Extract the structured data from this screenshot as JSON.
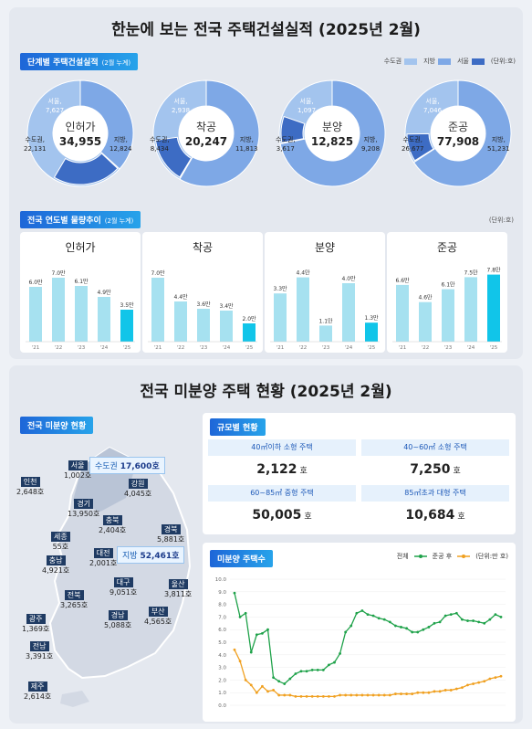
{
  "section1": {
    "title": "한눈에 보는 전국 주택건설실적 (2025년 2월)",
    "stage_tag": "단계별 주택건설실적",
    "stage_tag_note": "(2월 누계)",
    "legend": [
      "수도권",
      "지방",
      "서울"
    ],
    "unit": "(단위:호)",
    "colors": {
      "capital": "#a3c4ee",
      "local": "#7ea8e6",
      "seoul": "#3d6cc4"
    },
    "donuts": [
      {
        "name": "인허가",
        "total": "34,955",
        "seoul_label": "서울,",
        "seoul_value": "7,627",
        "capital_label": "수도권,",
        "capital_value": "22,131",
        "local_label": "지방,",
        "local_value": "12,824",
        "seoul": 7627,
        "capital": 22131,
        "local": 12824
      },
      {
        "name": "착공",
        "total": "20,247",
        "seoul_label": "서울,",
        "seoul_value": "2,938",
        "capital_label": "수도권,",
        "capital_value": "8,434",
        "local_label": "지방,",
        "local_value": "11,813",
        "seoul": 2938,
        "capital": 8434,
        "local": 11813
      },
      {
        "name": "분양",
        "total": "12,825",
        "seoul_label": "서울,",
        "seoul_value": "1,097",
        "capital_label": "수도권,",
        "capital_value": "3,617",
        "local_label": "지방,",
        "local_value": "9,208",
        "seoul": 1097,
        "capital": 3617,
        "local": 9208
      },
      {
        "name": "준공",
        "total": "77,908",
        "seoul_label": "서울,",
        "seoul_value": "7,046",
        "capital_label": "수도권,",
        "capital_value": "26,677",
        "local_label": "지방,",
        "local_value": "51,231",
        "seoul": 7046,
        "capital": 26677,
        "local": 51231
      }
    ],
    "trend_tag": "전국 연도별 물량추이",
    "trend_tag_note": "(2월 누계)",
    "trend_unit": "(단위:호)"
  },
  "section2": {
    "title": "전국 미분양 주택 현황 (2025년 2월)",
    "map_tag": "전국 미분양 현황",
    "capital_box_label": "수도권",
    "capital_box_value": "17,600호",
    "local_box_label": "지방",
    "local_box_value": "52,461호",
    "regions": [
      {
        "name": "서울",
        "value": "1,002호"
      },
      {
        "name": "인천",
        "value": "2,648호"
      },
      {
        "name": "경기",
        "value": "13,950호"
      },
      {
        "name": "강원",
        "value": "4,045호"
      },
      {
        "name": "충북",
        "value": "2,404호"
      },
      {
        "name": "경북",
        "value": "5,881호"
      },
      {
        "name": "세종",
        "value": "55호"
      },
      {
        "name": "대전",
        "value": "2,001호"
      },
      {
        "name": "충남",
        "value": "4,921호"
      },
      {
        "name": "대구",
        "value": "9,051호"
      },
      {
        "name": "울산",
        "value": "3,811호"
      },
      {
        "name": "전북",
        "value": "3,265호"
      },
      {
        "name": "경남",
        "value": "5,088호"
      },
      {
        "name": "부산",
        "value": "4,565호"
      },
      {
        "name": "광주",
        "value": "1,369호"
      },
      {
        "name": "전남",
        "value": "3,391호"
      },
      {
        "name": "제주",
        "value": "2,614호"
      }
    ],
    "size_tag": "규모별 현황",
    "sizes": [
      {
        "label": "40㎡이하 소형 주택",
        "value": "2,122",
        "unit": "호"
      },
      {
        "label": "40~60㎡ 소형 주택",
        "value": "7,250",
        "unit": "호"
      },
      {
        "label": "60~85㎡ 중형 주택",
        "value": "50,005",
        "unit": "호"
      },
      {
        "label": "85㎡초과 대형 주택",
        "value": "10,684",
        "unit": "호"
      }
    ],
    "line_tag": "미분양 주택수",
    "line_legend_total": "전체",
    "line_legend_done": "준공 후",
    "line_unit": "(단위:만 호)"
  },
  "chart_data": [
    {
      "type": "bar",
      "title": "인허가",
      "categories": [
        "'21",
        "'22",
        "'23",
        "'24",
        "'25"
      ],
      "values": [
        6.0,
        7.0,
        6.1,
        4.9,
        3.5
      ],
      "value_labels": [
        "6.0만",
        "7.0만",
        "6.1만",
        "4.9만",
        "3.5만"
      ],
      "ylim": [
        0,
        8
      ]
    },
    {
      "type": "bar",
      "title": "착공",
      "categories": [
        "'21",
        "'22",
        "'23",
        "'24",
        "'25"
      ],
      "values": [
        7.0,
        4.4,
        3.6,
        3.4,
        2.0
      ],
      "value_labels": [
        "7.0만",
        "4.4만",
        "3.6만",
        "3.4만",
        "2.0만"
      ],
      "ylim": [
        0,
        8
      ]
    },
    {
      "type": "bar",
      "title": "분양",
      "categories": [
        "'21",
        "'22",
        "'23",
        "'24",
        "'25"
      ],
      "values": [
        3.3,
        4.4,
        1.1,
        4.0,
        1.3
      ],
      "value_labels": [
        "3.3만",
        "4.4만",
        "1.1만",
        "4.0만",
        "1.3만"
      ],
      "ylim": [
        0,
        5
      ]
    },
    {
      "type": "bar",
      "title": "준공",
      "categories": [
        "'21",
        "'22",
        "'23",
        "'24",
        "'25"
      ],
      "values": [
        6.6,
        4.6,
        6.1,
        7.5,
        7.8
      ],
      "value_labels": [
        "6.6만",
        "4.6만",
        "6.1만",
        "7.5만",
        "7.8만"
      ],
      "ylim": [
        0,
        8.5
      ]
    },
    {
      "type": "line",
      "ylim": [
        0,
        10
      ],
      "yticks": [
        "0.0",
        "1.0",
        "2.0",
        "3.0",
        "4.0",
        "5.0",
        "6.0",
        "7.0",
        "8.0",
        "9.0",
        "10.0"
      ],
      "series": [
        {
          "name": "전체",
          "color": "#1fa24a",
          "values": [
            8.9,
            7.0,
            7.3,
            4.2,
            5.6,
            5.7,
            6.0,
            2.2,
            1.9,
            1.7,
            2.1,
            2.5,
            2.7,
            2.7,
            2.8,
            2.8,
            2.8,
            3.2,
            3.4,
            4.1,
            5.8,
            6.3,
            7.3,
            7.5,
            7.2,
            7.1,
            6.9,
            6.8,
            6.6,
            6.3,
            6.2,
            6.1,
            5.8,
            5.8,
            6.0,
            6.2,
            6.5,
            6.6,
            7.1,
            7.2,
            7.3,
            6.8,
            6.7,
            6.7,
            6.6,
            6.5,
            6.8,
            7.2,
            7.0
          ]
        },
        {
          "name": "준공 후",
          "color": "#f0a020",
          "values": [
            4.4,
            3.5,
            2.0,
            1.6,
            1.0,
            1.5,
            1.1,
            1.2,
            0.8,
            0.8,
            0.8,
            0.7,
            0.7,
            0.7,
            0.7,
            0.7,
            0.7,
            0.7,
            0.7,
            0.8,
            0.8,
            0.8,
            0.8,
            0.8,
            0.8,
            0.8,
            0.8,
            0.8,
            0.8,
            0.9,
            0.9,
            0.9,
            0.9,
            1.0,
            1.0,
            1.0,
            1.1,
            1.1,
            1.2,
            1.2,
            1.3,
            1.4,
            1.6,
            1.7,
            1.8,
            1.9,
            2.1,
            2.2,
            2.3
          ]
        }
      ]
    }
  ]
}
